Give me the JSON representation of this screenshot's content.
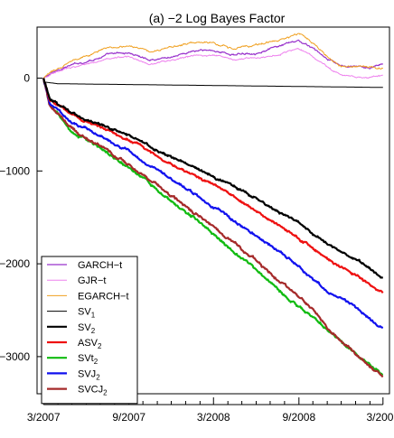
{
  "chart_data": {
    "type": "line",
    "title": "(a) −2 Log Bayes Factor",
    "xlabel": "",
    "ylabel": "",
    "x_range": [
      "2007-02-15",
      "2009-03-15"
    ],
    "ylim": [
      -3400,
      550
    ],
    "x_ticks": [
      {
        "date": "2007-03-01",
        "label": "3/2007"
      },
      {
        "date": "2007-09-01",
        "label": "9/2007"
      },
      {
        "date": "2008-03-01",
        "label": "3/2008"
      },
      {
        "date": "2008-09-01",
        "label": "9/2008"
      },
      {
        "date": "2009-03-01",
        "label": "3/2009"
      }
    ],
    "minor_ticks_months": [
      "2007-04",
      "2007-05",
      "2007-06",
      "2007-07",
      "2007-08",
      "2007-10",
      "2007-11",
      "2007-12",
      "2008-01",
      "2008-02",
      "2008-04",
      "2008-05",
      "2008-06",
      "2008-07",
      "2008-08",
      "2008-10",
      "2008-11",
      "2008-12",
      "2009-01",
      "2009-02"
    ],
    "y_ticks": [
      0,
      -1000,
      -2000,
      -3000
    ],
    "grid": false,
    "legend_position": "bottom-left",
    "series": [
      {
        "name": "GARCH−t",
        "color": "#9933cc",
        "width": 1.2,
        "noise": 12,
        "x": [
          "2007-03-01",
          "2007-03-15",
          "2007-04-15",
          "2007-06-01",
          "2007-07-15",
          "2007-09-01",
          "2007-10-15",
          "2007-12-01",
          "2008-01-15",
          "2008-03-01",
          "2008-04-15",
          "2008-06-01",
          "2008-07-15",
          "2008-09-01",
          "2008-10-01",
          "2008-11-01",
          "2008-12-01",
          "2009-01-01",
          "2009-02-01",
          "2009-03-01"
        ],
        "y": [
          0,
          40,
          120,
          180,
          250,
          270,
          200,
          230,
          290,
          300,
          250,
          280,
          330,
          400,
          320,
          200,
          130,
          120,
          110,
          150
        ]
      },
      {
        "name": "GJR−t",
        "color": "#ee82ee",
        "width": 1.0,
        "noise": 10,
        "x": [
          "2007-03-01",
          "2007-03-15",
          "2007-04-15",
          "2007-06-01",
          "2007-07-15",
          "2007-09-01",
          "2007-10-15",
          "2007-12-01",
          "2008-01-15",
          "2008-03-01",
          "2008-04-15",
          "2008-06-01",
          "2008-07-15",
          "2008-09-01",
          "2008-10-01",
          "2008-11-01",
          "2008-12-01",
          "2009-01-01",
          "2009-02-01",
          "2009-03-01"
        ],
        "y": [
          0,
          30,
          100,
          150,
          210,
          230,
          160,
          190,
          240,
          250,
          200,
          220,
          260,
          320,
          240,
          120,
          40,
          10,
          10,
          20
        ]
      },
      {
        "name": "EGARCH−t",
        "color": "#f0a020",
        "width": 1.0,
        "noise": 12,
        "x": [
          "2007-03-01",
          "2007-03-15",
          "2007-04-15",
          "2007-06-01",
          "2007-07-15",
          "2007-09-01",
          "2007-10-15",
          "2007-12-01",
          "2008-01-15",
          "2008-03-01",
          "2008-04-15",
          "2008-06-01",
          "2008-07-15",
          "2008-09-01",
          "2008-10-01",
          "2008-11-01",
          "2008-12-01",
          "2009-01-01",
          "2009-02-01",
          "2009-03-01"
        ],
        "y": [
          0,
          50,
          150,
          250,
          330,
          360,
          290,
          330,
          380,
          380,
          320,
          350,
          400,
          470,
          380,
          240,
          130,
          110,
          110,
          90
        ]
      },
      {
        "name": "SV",
        "sub": "1",
        "color": "#000000",
        "width": 1.0,
        "noise": 0,
        "x": [
          "2007-03-01",
          "2007-04-01",
          "2009-03-01"
        ],
        "y": [
          -40,
          -60,
          -100
        ]
      },
      {
        "name": "SV",
        "sub": "2",
        "color": "#000000",
        "width": 2.2,
        "noise": 14,
        "x": [
          "2007-03-01",
          "2007-03-15",
          "2007-05-01",
          "2007-07-01",
          "2007-09-01",
          "2007-11-01",
          "2008-01-01",
          "2008-03-01",
          "2008-05-01",
          "2008-07-01",
          "2008-09-01",
          "2008-11-01",
          "2009-01-01",
          "2009-03-01"
        ],
        "y": [
          0,
          -220,
          -380,
          -500,
          -620,
          -780,
          -920,
          -1060,
          -1200,
          -1380,
          -1560,
          -1780,
          -1950,
          -2150
        ]
      },
      {
        "name": "ASV",
        "sub": "2",
        "color": "#ee1111",
        "width": 2.2,
        "noise": 14,
        "x": [
          "2007-03-01",
          "2007-03-15",
          "2007-05-01",
          "2007-07-01",
          "2007-09-01",
          "2007-11-01",
          "2008-01-01",
          "2008-03-01",
          "2008-05-01",
          "2008-07-01",
          "2008-09-01",
          "2008-11-01",
          "2009-01-01",
          "2009-03-01"
        ],
        "y": [
          0,
          -230,
          -390,
          -520,
          -660,
          -840,
          -1000,
          -1160,
          -1330,
          -1520,
          -1720,
          -1950,
          -2120,
          -2310
        ]
      },
      {
        "name": "SVt",
        "sub": "2",
        "color": "#11bb11",
        "width": 2.2,
        "noise": 16,
        "x": [
          "2007-03-01",
          "2007-03-15",
          "2007-05-01",
          "2007-07-01",
          "2007-09-01",
          "2007-11-01",
          "2008-01-01",
          "2008-03-01",
          "2008-05-01",
          "2008-07-01",
          "2008-09-01",
          "2008-11-01",
          "2009-01-01",
          "2009-03-01"
        ],
        "y": [
          0,
          -300,
          -560,
          -760,
          -960,
          -1200,
          -1450,
          -1680,
          -1930,
          -2190,
          -2460,
          -2720,
          -2960,
          -3200
        ]
      },
      {
        "name": "SVJ",
        "sub": "2",
        "color": "#1111ee",
        "width": 2.2,
        "noise": 14,
        "x": [
          "2007-03-01",
          "2007-03-15",
          "2007-05-01",
          "2007-07-01",
          "2007-09-01",
          "2007-11-01",
          "2008-01-01",
          "2008-03-01",
          "2008-05-01",
          "2008-07-01",
          "2008-09-01",
          "2008-11-01",
          "2009-01-01",
          "2009-03-01"
        ],
        "y": [
          0,
          -270,
          -480,
          -620,
          -790,
          -990,
          -1180,
          -1380,
          -1590,
          -1800,
          -2030,
          -2280,
          -2470,
          -2690
        ]
      },
      {
        "name": "SVCJ",
        "sub": "2",
        "color": "#a52a2a",
        "width": 2.2,
        "noise": 16,
        "x": [
          "2007-03-01",
          "2007-03-15",
          "2007-05-01",
          "2007-07-01",
          "2007-09-01",
          "2007-11-01",
          "2008-01-01",
          "2008-03-01",
          "2008-05-01",
          "2008-07-01",
          "2008-09-01",
          "2008-11-01",
          "2009-01-01",
          "2009-03-01"
        ],
        "y": [
          0,
          -300,
          -540,
          -740,
          -930,
          -1150,
          -1380,
          -1600,
          -1840,
          -2090,
          -2340,
          -2690,
          -2960,
          -3210
        ]
      }
    ]
  }
}
